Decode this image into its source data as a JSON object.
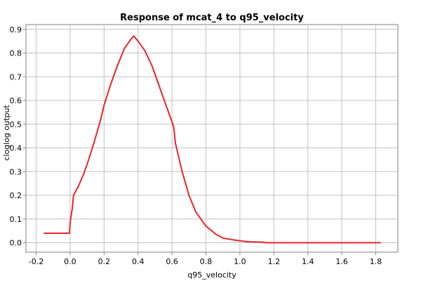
{
  "chart_data": {
    "type": "line",
    "title": "Response of mcat_4 to q95_velocity",
    "xlabel": "q95_velocity",
    "ylabel": "cloglog output",
    "xlim": [
      -0.26,
      1.93
    ],
    "ylim": [
      -0.04,
      0.92
    ],
    "xticks": [
      -0.2,
      0.0,
      0.2,
      0.4,
      0.6,
      0.8,
      1.0,
      1.2,
      1.4,
      1.6,
      1.8
    ],
    "xtick_labels": [
      "-0.2",
      "0.0",
      "0.2",
      "0.4",
      "0.6",
      "0.8",
      "1.0",
      "1.2",
      "1.4",
      "1.6",
      "1.8"
    ],
    "yticks": [
      0.0,
      0.1,
      0.2,
      0.3,
      0.4,
      0.5,
      0.6,
      0.7,
      0.8,
      0.9
    ],
    "ytick_labels": [
      "0.0",
      "0.1",
      "0.2",
      "0.3",
      "0.4",
      "0.5",
      "0.6",
      "0.7",
      "0.8",
      "0.9"
    ],
    "grid": true,
    "series": [
      {
        "color": "#e8262b",
        "x": [
          -0.155,
          -0.004,
          -0.002,
          0.0,
          0.005,
          0.012,
          0.02,
          0.05,
          0.08,
          0.1,
          0.14,
          0.18,
          0.2,
          0.24,
          0.28,
          0.32,
          0.36,
          0.375,
          0.4,
          0.44,
          0.48,
          0.52,
          0.56,
          0.6,
          0.61,
          0.62,
          0.66,
          0.7,
          0.74,
          0.8,
          0.86,
          0.9,
          0.96,
          1.0,
          1.05,
          1.1,
          1.14,
          1.15,
          1.2,
          1.3,
          1.5,
          1.7,
          1.83
        ],
        "y": [
          0.04,
          0.04,
          0.06,
          0.08,
          0.11,
          0.14,
          0.2,
          0.24,
          0.29,
          0.33,
          0.42,
          0.52,
          0.58,
          0.67,
          0.75,
          0.82,
          0.86,
          0.872,
          0.85,
          0.81,
          0.75,
          0.67,
          0.59,
          0.51,
          0.49,
          0.42,
          0.3,
          0.2,
          0.13,
          0.07,
          0.035,
          0.02,
          0.012,
          0.008,
          0.004,
          0.003,
          0.002,
          0.0,
          0.0,
          0.0,
          0.0,
          0.0,
          0.0
        ]
      }
    ]
  }
}
